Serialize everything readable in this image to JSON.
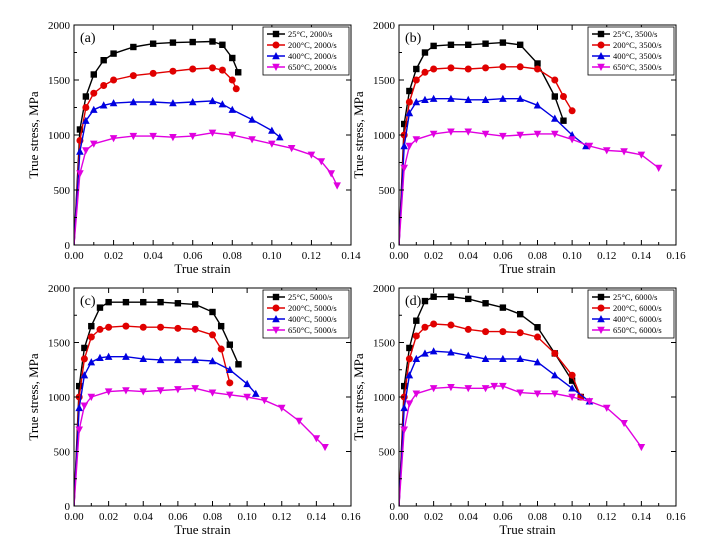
{
  "chart_data": [
    {
      "type": "line",
      "panel_label": "(a)",
      "xlabel": "True strain",
      "ylabel": "True stress, MPa",
      "xlim": [
        0,
        0.14
      ],
      "ylim": [
        0,
        2000
      ],
      "xticks": [
        "0.00",
        "0.02",
        "0.04",
        "0.06",
        "0.08",
        "0.10",
        "0.12",
        "0.14"
      ],
      "yticks": [
        "0",
        "500",
        "1000",
        "1500",
        "2000"
      ],
      "legend_position": "top-right",
      "series": [
        {
          "name": "25°C, 2000/s",
          "color": "#000000",
          "marker": "square",
          "x": [
            0,
            0.003,
            0.006,
            0.01,
            0.015,
            0.02,
            0.03,
            0.04,
            0.05,
            0.06,
            0.07,
            0.075,
            0.08,
            0.083
          ],
          "y": [
            0,
            1050,
            1350,
            1550,
            1680,
            1740,
            1800,
            1830,
            1840,
            1845,
            1850,
            1820,
            1700,
            1570
          ]
        },
        {
          "name": "200°C, 2000/s",
          "color": "#e00000",
          "marker": "circle",
          "x": [
            0,
            0.003,
            0.006,
            0.01,
            0.015,
            0.02,
            0.03,
            0.04,
            0.05,
            0.06,
            0.07,
            0.075,
            0.08,
            0.082
          ],
          "y": [
            0,
            950,
            1250,
            1380,
            1450,
            1500,
            1540,
            1560,
            1580,
            1600,
            1610,
            1590,
            1500,
            1420
          ]
        },
        {
          "name": "400°C, 2000/s",
          "color": "#0000e0",
          "marker": "triangle-up",
          "x": [
            0,
            0.003,
            0.006,
            0.01,
            0.015,
            0.02,
            0.03,
            0.04,
            0.05,
            0.06,
            0.07,
            0.075,
            0.08,
            0.09,
            0.1,
            0.104
          ],
          "y": [
            0,
            850,
            1130,
            1230,
            1270,
            1290,
            1300,
            1300,
            1290,
            1300,
            1310,
            1280,
            1230,
            1140,
            1040,
            980
          ]
        },
        {
          "name": "650°C, 2000/s",
          "color": "#e000e0",
          "marker": "triangle-down",
          "x": [
            0,
            0.003,
            0.006,
            0.01,
            0.02,
            0.03,
            0.04,
            0.05,
            0.06,
            0.07,
            0.08,
            0.09,
            0.1,
            0.11,
            0.12,
            0.125,
            0.13,
            0.133
          ],
          "y": [
            0,
            650,
            860,
            920,
            970,
            990,
            990,
            980,
            990,
            1020,
            1000,
            960,
            920,
            880,
            820,
            760,
            650,
            540
          ]
        }
      ]
    },
    {
      "type": "line",
      "panel_label": "(b)",
      "xlabel": "True strain",
      "ylabel": "True stress, MPa",
      "xlim": [
        0,
        0.16
      ],
      "ylim": [
        0,
        2000
      ],
      "xticks": [
        "0.00",
        "0.02",
        "0.04",
        "0.06",
        "0.08",
        "0.10",
        "0.12",
        "0.14",
        "0.16"
      ],
      "yticks": [
        "0",
        "500",
        "1000",
        "1500",
        "2000"
      ],
      "legend_position": "top-right",
      "series": [
        {
          "name": "25°C, 3500/s",
          "color": "#000000",
          "marker": "square",
          "x": [
            0,
            0.003,
            0.006,
            0.01,
            0.015,
            0.02,
            0.03,
            0.04,
            0.05,
            0.06,
            0.07,
            0.08,
            0.09,
            0.095
          ],
          "y": [
            0,
            1100,
            1400,
            1600,
            1750,
            1810,
            1820,
            1820,
            1830,
            1840,
            1820,
            1650,
            1350,
            1130
          ]
        },
        {
          "name": "200°C, 3500/s",
          "color": "#e00000",
          "marker": "circle",
          "x": [
            0,
            0.003,
            0.006,
            0.01,
            0.015,
            0.02,
            0.03,
            0.04,
            0.05,
            0.06,
            0.07,
            0.08,
            0.09,
            0.095,
            0.1
          ],
          "y": [
            0,
            1000,
            1300,
            1500,
            1570,
            1600,
            1610,
            1600,
            1610,
            1620,
            1620,
            1600,
            1500,
            1350,
            1220
          ]
        },
        {
          "name": "400°C, 3500/s",
          "color": "#0000e0",
          "marker": "triangle-up",
          "x": [
            0,
            0.003,
            0.006,
            0.01,
            0.015,
            0.02,
            0.03,
            0.04,
            0.05,
            0.06,
            0.07,
            0.08,
            0.09,
            0.1,
            0.108
          ],
          "y": [
            0,
            900,
            1200,
            1300,
            1320,
            1330,
            1330,
            1320,
            1320,
            1330,
            1330,
            1270,
            1150,
            1000,
            900
          ]
        },
        {
          "name": "650°C, 3500/s",
          "color": "#e000e0",
          "marker": "triangle-down",
          "x": [
            0,
            0.003,
            0.006,
            0.01,
            0.02,
            0.03,
            0.04,
            0.05,
            0.06,
            0.07,
            0.08,
            0.09,
            0.1,
            0.11,
            0.12,
            0.13,
            0.14,
            0.15
          ],
          "y": [
            0,
            700,
            900,
            960,
            1010,
            1030,
            1030,
            1010,
            990,
            1000,
            1010,
            1010,
            960,
            900,
            860,
            850,
            820,
            700
          ]
        }
      ]
    },
    {
      "type": "line",
      "panel_label": "(c)",
      "xlabel": "True strain",
      "ylabel": "True stress, MPa",
      "xlim": [
        0,
        0.16
      ],
      "ylim": [
        0,
        2000
      ],
      "xticks": [
        "0.00",
        "0.02",
        "0.04",
        "0.06",
        "0.08",
        "0.10",
        "0.12",
        "0.14",
        "0.16"
      ],
      "yticks": [
        "0",
        "500",
        "1000",
        "1500",
        "2000"
      ],
      "legend_position": "top-right",
      "series": [
        {
          "name": "25°C, 5000/s",
          "color": "#000000",
          "marker": "square",
          "x": [
            0,
            0.003,
            0.006,
            0.01,
            0.015,
            0.02,
            0.03,
            0.04,
            0.05,
            0.06,
            0.07,
            0.08,
            0.085,
            0.09,
            0.095
          ],
          "y": [
            0,
            1100,
            1450,
            1650,
            1820,
            1870,
            1870,
            1870,
            1870,
            1860,
            1850,
            1780,
            1650,
            1480,
            1300
          ]
        },
        {
          "name": "200°C, 5000/s",
          "color": "#e00000",
          "marker": "circle",
          "x": [
            0,
            0.003,
            0.006,
            0.01,
            0.015,
            0.02,
            0.03,
            0.04,
            0.05,
            0.06,
            0.07,
            0.08,
            0.085,
            0.09
          ],
          "y": [
            0,
            1000,
            1350,
            1550,
            1620,
            1640,
            1650,
            1640,
            1640,
            1630,
            1620,
            1570,
            1440,
            1130
          ]
        },
        {
          "name": "400°C, 5000/s",
          "color": "#0000e0",
          "marker": "triangle-up",
          "x": [
            0,
            0.003,
            0.006,
            0.01,
            0.015,
            0.02,
            0.03,
            0.04,
            0.05,
            0.06,
            0.07,
            0.08,
            0.09,
            0.1,
            0.105
          ],
          "y": [
            0,
            900,
            1200,
            1320,
            1360,
            1370,
            1370,
            1350,
            1340,
            1340,
            1340,
            1330,
            1250,
            1120,
            1030
          ]
        },
        {
          "name": "650°C, 5000/s",
          "color": "#e000e0",
          "marker": "triangle-down",
          "x": [
            0,
            0.003,
            0.006,
            0.01,
            0.02,
            0.03,
            0.04,
            0.05,
            0.06,
            0.07,
            0.08,
            0.09,
            0.1,
            0.11,
            0.12,
            0.13,
            0.14,
            0.145
          ],
          "y": [
            0,
            700,
            920,
            1000,
            1050,
            1060,
            1050,
            1060,
            1070,
            1080,
            1040,
            1020,
            1000,
            970,
            900,
            780,
            620,
            540
          ]
        }
      ]
    },
    {
      "type": "line",
      "panel_label": "(d)",
      "xlabel": "True strain",
      "ylabel": "True stress, MPa",
      "xlim": [
        0,
        0.16
      ],
      "ylim": [
        0,
        2000
      ],
      "xticks": [
        "0.00",
        "0.02",
        "0.04",
        "0.06",
        "0.08",
        "0.10",
        "0.12",
        "0.14",
        "0.16"
      ],
      "yticks": [
        "0",
        "500",
        "1000",
        "1500",
        "2000"
      ],
      "legend_position": "top-right",
      "series": [
        {
          "name": "25°C, 6000/s",
          "color": "#000000",
          "marker": "square",
          "x": [
            0,
            0.003,
            0.006,
            0.01,
            0.015,
            0.02,
            0.03,
            0.04,
            0.05,
            0.06,
            0.07,
            0.08,
            0.09,
            0.1,
            0.105
          ],
          "y": [
            0,
            1100,
            1450,
            1700,
            1880,
            1920,
            1920,
            1900,
            1860,
            1820,
            1760,
            1640,
            1400,
            1150,
            1000
          ]
        },
        {
          "name": "200°C, 6000/s",
          "color": "#e00000",
          "marker": "circle",
          "x": [
            0,
            0.003,
            0.006,
            0.01,
            0.015,
            0.02,
            0.03,
            0.04,
            0.05,
            0.06,
            0.07,
            0.08,
            0.09,
            0.1,
            0.105
          ],
          "y": [
            0,
            1000,
            1350,
            1560,
            1640,
            1670,
            1660,
            1620,
            1600,
            1600,
            1590,
            1550,
            1400,
            1200,
            1000
          ]
        },
        {
          "name": "400°C, 6000/s",
          "color": "#0000e0",
          "marker": "triangle-up",
          "x": [
            0,
            0.003,
            0.006,
            0.01,
            0.015,
            0.02,
            0.03,
            0.04,
            0.05,
            0.06,
            0.07,
            0.08,
            0.09,
            0.1,
            0.11
          ],
          "y": [
            0,
            900,
            1200,
            1350,
            1400,
            1420,
            1410,
            1380,
            1350,
            1350,
            1350,
            1320,
            1200,
            1080,
            960
          ]
        },
        {
          "name": "650°C, 6000/s",
          "color": "#e000e0",
          "marker": "triangle-down",
          "x": [
            0,
            0.003,
            0.006,
            0.01,
            0.02,
            0.03,
            0.04,
            0.05,
            0.055,
            0.06,
            0.07,
            0.08,
            0.09,
            0.1,
            0.11,
            0.12,
            0.13,
            0.14
          ],
          "y": [
            0,
            700,
            940,
            1030,
            1080,
            1090,
            1080,
            1080,
            1100,
            1100,
            1040,
            1030,
            1030,
            1000,
            960,
            900,
            760,
            540
          ]
        }
      ]
    }
  ]
}
